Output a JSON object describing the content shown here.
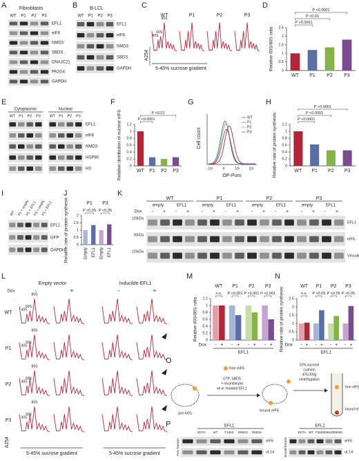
{
  "panels": {
    "A": {
      "label": "A",
      "title": "Fibroblasts",
      "lanes": [
        "WT",
        "P1",
        "P2",
        "P3"
      ],
      "rows": [
        "EFL1",
        "eIF6",
        "NMD3",
        "SBDS",
        "DNAJC21",
        "PA2G4",
        "GAPDH"
      ]
    },
    "B": {
      "label": "B",
      "title": "B-LCL",
      "lanes": [
        "WT",
        "P1",
        "P2",
        "P3"
      ],
      "rows": [
        "EFL1",
        "eIF6",
        "NMD3",
        "SBDS",
        "GAPDH"
      ]
    },
    "C": {
      "label": "C",
      "samples": [
        "WT",
        "P1",
        "P2",
        "P3"
      ],
      "peaks": [
        "40S",
        "60S",
        "80S"
      ],
      "ylabel": "A254",
      "xlabel": "5-45% sucrose gradient"
    },
    "E": {
      "label": "E",
      "groups": [
        "Cytoplasmic",
        "Nuclear"
      ],
      "lanes": [
        "WT",
        "P1",
        "P2",
        "P3"
      ],
      "rows": [
        "EFL1",
        "eIF6",
        "NMD3",
        "HSP90",
        "H3"
      ]
    },
    "G": {
      "label": "G",
      "ylabel": "Cell count",
      "xlabel": "OP-Puro",
      "ticks": [
        "-10¹",
        "0",
        "10¹",
        "10²"
      ],
      "legend": [
        "WT",
        "P1",
        "P2",
        "P3"
      ]
    },
    "I": {
      "label": "I",
      "lanes": [
        "WT",
        "P1 + empty",
        "P1 + EFL1",
        "P3 + empty",
        "P3 + EFL1"
      ],
      "rows": [
        "EFL1",
        "GFP",
        "GAPDH"
      ]
    },
    "K": {
      "label": "K",
      "groups": [
        "WT",
        "P1",
        "P2",
        "P3"
      ],
      "vectors": [
        "empty",
        "EFL1"
      ],
      "dox": "Dox",
      "signs": [
        "-",
        "+"
      ],
      "markers": [
        "125kDa",
        "30kDa",
        "125kDa"
      ],
      "rows": [
        "EFL1",
        "eIF6",
        "Vinculin"
      ]
    },
    "L": {
      "label": "L",
      "groups": [
        "Empty vector",
        "Inducible EFL1"
      ],
      "dox": "Dox",
      "signs": [
        "-",
        "+"
      ],
      "samples": [
        "WT",
        "P1",
        "P2",
        "P3"
      ],
      "peaks": [
        "40S",
        "60S",
        "80S"
      ],
      "ylabel": "A254",
      "xlabel": "5-45% sucrose gradient"
    },
    "O": {
      "label": "O",
      "pre": "pre-60S",
      "free": "free eIF6",
      "step1": [
        "GTP, SBDS",
        "+ recombinant",
        "wt or mutated EFL1"
      ],
      "bound": "bound eIF6",
      "step2": [
        "15% sucrose",
        "cushion",
        "476,000g",
        "centrifugation"
      ],
      "tube_free": "free eIF6",
      "tube_bound": "bound eIF6"
    },
    "P": {
      "label": "P",
      "header": "EFL1",
      "lanes": [
        "EDTA",
        "WT",
        "F345S",
        "D862G",
        "R693H"
      ],
      "side": [
        "Free fraction",
        "Bound fraction"
      ],
      "rows": [
        "eIF6",
        "uL14"
      ]
    }
  },
  "chart_data": [
    {
      "type": "bar",
      "label": "D",
      "ylabel": "Relative 60S/80S ratio",
      "categories": [
        "WT",
        "P1",
        "P2",
        "P3"
      ],
      "values": [
        1,
        1.2,
        1.35,
        1.8
      ],
      "colors": [
        "#b3263a",
        "#5a6fa6",
        "#86b24a",
        "#7a4b8f"
      ],
      "ylim": [
        0,
        2.5
      ],
      "yticks": [
        0,
        0.5,
        1,
        1.5,
        2,
        2.5
      ],
      "annotations": [
        "P <0.0001",
        "P <0.01",
        "P <0.0001"
      ]
    },
    {
      "type": "bar",
      "label": "F",
      "ylabel": "Relative distribution of nuclear eIF6",
      "categories": [
        "WT",
        "P1",
        "P2",
        "P3"
      ],
      "values": [
        1,
        0.25,
        0.2,
        0.25
      ],
      "colors": [
        "#b3263a",
        "#5a6fa6",
        "#86b24a",
        "#7a4b8f"
      ],
      "ylim": [
        0,
        1.2
      ],
      "yticks": [
        0,
        0.2,
        0.4,
        0.6,
        0.8,
        1,
        1.2
      ],
      "annotations": [
        "P <0.01",
        "P <0.0001"
      ]
    },
    {
      "type": "bar",
      "label": "H",
      "ylabel": "Relative rate of protein synthesis",
      "categories": [
        "WT",
        "P1",
        "P2",
        "P3"
      ],
      "values": [
        1,
        0.62,
        0.45,
        0.45
      ],
      "colors": [
        "#b3263a",
        "#5a6fa6",
        "#86b24a",
        "#7a4b8f"
      ],
      "ylim": [
        0,
        1.2
      ],
      "yticks": [
        0,
        0.2,
        0.4,
        0.6,
        0.8,
        1,
        1.2
      ],
      "annotations": [
        "P <0.0001",
        "P <0.0001",
        "P <0.0001"
      ]
    },
    {
      "type": "bar",
      "label": "J",
      "ylabel": "Relative rate of protein synthesis",
      "groups": [
        "P1",
        "P3"
      ],
      "categories": [
        "Empty",
        "EFL1",
        "Empty",
        "EFL1"
      ],
      "values": [
        1,
        1.35,
        1,
        1.4
      ],
      "colors": [
        "#a8b4d6",
        "#5a6fa6",
        "#c3a6cf",
        "#7a4b8f"
      ],
      "ylim": [
        0,
        2
      ],
      "yticks": [
        0,
        0.5,
        1,
        1.5,
        2
      ],
      "annotations": [
        "P <0.05",
        "P <0.05"
      ]
    },
    {
      "type": "bar",
      "label": "M",
      "ylabel": "Relative 60S/80S ratio",
      "dox": "Dox",
      "xlabel": "EFL1",
      "categories": [
        "WT",
        "P1",
        "P2",
        "P3"
      ],
      "series": [
        {
          "name": "-",
          "colors": [
            "#e3a0a8",
            "#a8b4d6",
            "#c6dea6",
            "#c3a6cf"
          ],
          "values": [
            1,
            1,
            1,
            1
          ]
        },
        {
          "name": "+",
          "colors": [
            "#b3263a",
            "#5a6fa6",
            "#86b24a",
            "#7a4b8f"
          ],
          "values": [
            1,
            0.72,
            0.8,
            0.6
          ]
        }
      ],
      "ylim": [
        0,
        1.2
      ],
      "yticks": [
        0,
        0.2,
        0.4,
        0.6,
        0.8,
        1,
        1.2
      ],
      "annotations": [
        "n.s.",
        "P <0.001",
        "P <0.001",
        "P <0.001"
      ]
    },
    {
      "type": "bar",
      "label": "N",
      "ylabel": "Relative rate of protein synthesis",
      "dox": "Dox",
      "xlabel": "EFL1",
      "categories": [
        "WT",
        "P1",
        "P2",
        "P3"
      ],
      "series": [
        {
          "name": "-",
          "colors": [
            "#e3a0a8",
            "#a8b4d6",
            "#c6dea6",
            "#c3a6cf"
          ],
          "values": [
            1,
            1,
            1,
            1
          ]
        },
        {
          "name": "+",
          "colors": [
            "#b3263a",
            "#5a6fa6",
            "#86b24a",
            "#7a4b8f"
          ],
          "values": [
            1.05,
            1.8,
            1.45,
            2.05
          ]
        }
      ],
      "ylim": [
        0,
        2.5
      ],
      "yticks": [
        0,
        0.5,
        1,
        1.5,
        2,
        2.5
      ],
      "annotations": [
        "n.s.",
        "P <0.05",
        "P <0.05",
        "P <0.05"
      ]
    }
  ]
}
